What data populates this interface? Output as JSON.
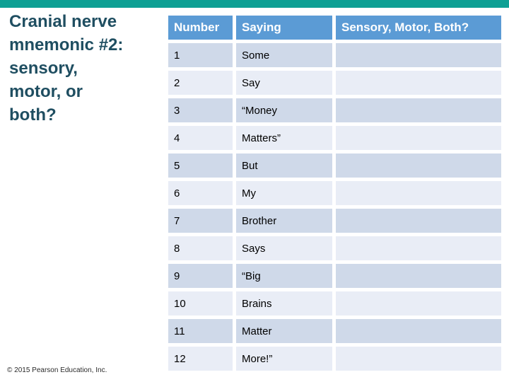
{
  "slide": {
    "title": "Cranial nerve\nmnemonic #2:\nsensory,\nmotor, or\nboth?",
    "copyright": "© 2015 Pearson Education, Inc."
  },
  "colors": {
    "top_bar_teal": "#0EA094",
    "title_text": "#1F4E61",
    "table_header_bg": "#5B9BD5",
    "table_header_text": "#FFFFFF",
    "row_odd_bg": "#CFD9E9",
    "row_even_bg": "#E9EDF6",
    "cell_text": "#000000"
  },
  "table": {
    "columns": [
      "Number",
      "Saying",
      "Sensory, Motor, Both?"
    ],
    "rows": [
      {
        "number": "1",
        "saying": "Some",
        "answer": ""
      },
      {
        "number": "2",
        "saying": "Say",
        "answer": ""
      },
      {
        "number": "3",
        "saying": "“Money",
        "answer": ""
      },
      {
        "number": "4",
        "saying": "Matters”",
        "answer": ""
      },
      {
        "number": "5",
        "saying": "But",
        "answer": ""
      },
      {
        "number": "6",
        "saying": "My",
        "answer": ""
      },
      {
        "number": "7",
        "saying": "Brother",
        "answer": ""
      },
      {
        "number": "8",
        "saying": "Says",
        "answer": ""
      },
      {
        "number": "9",
        "saying": "“Big",
        "answer": ""
      },
      {
        "number": "10",
        "saying": "Brains",
        "answer": ""
      },
      {
        "number": "11",
        "saying": "Matter",
        "answer": ""
      },
      {
        "number": "12",
        "saying": "More!”",
        "answer": ""
      }
    ]
  }
}
